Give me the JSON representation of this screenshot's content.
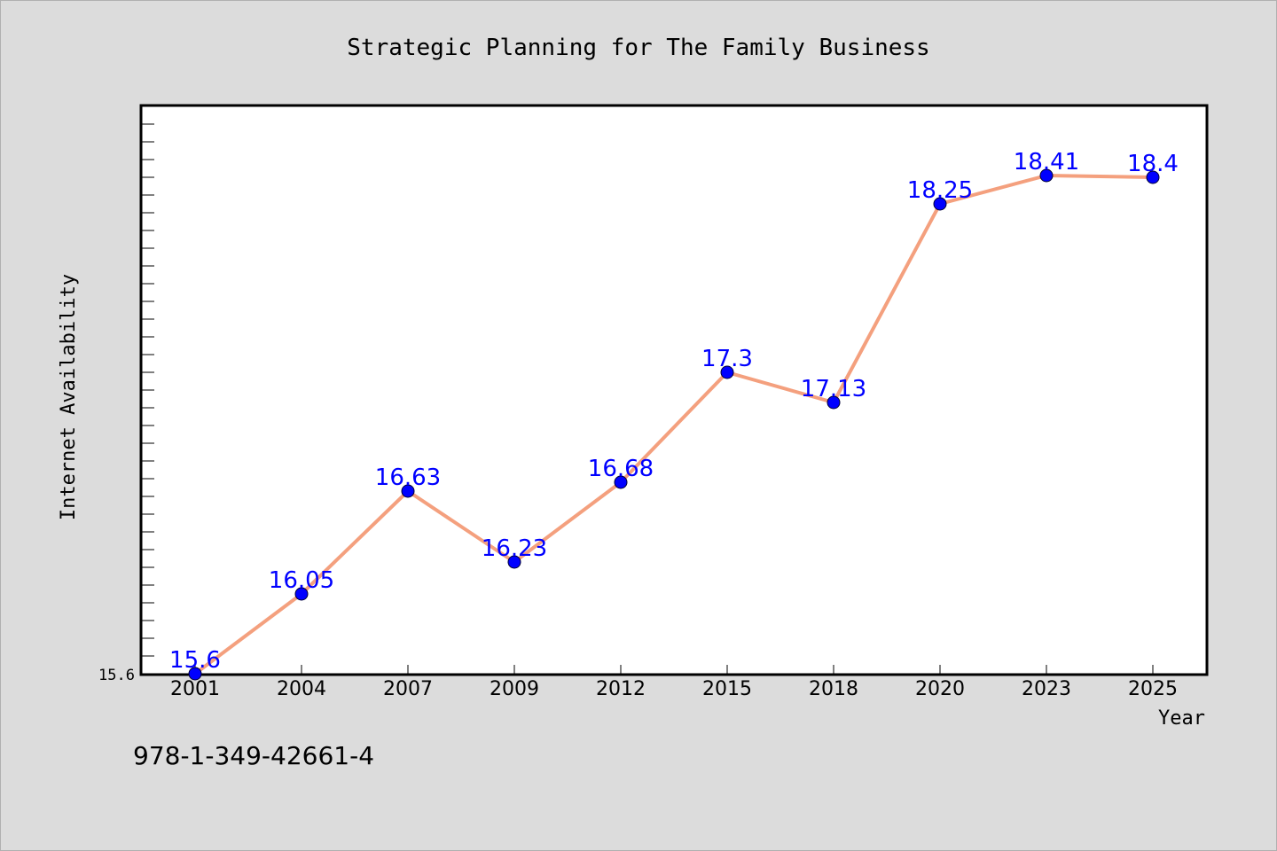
{
  "chart_data": {
    "type": "line",
    "title": "Strategic Planning for The Family Business",
    "xlabel": "Year",
    "ylabel": "Internet Availability",
    "categories": [
      "2001",
      "2004",
      "2007",
      "2009",
      "2012",
      "2015",
      "2018",
      "2020",
      "2023",
      "2025"
    ],
    "series": [
      {
        "values": [
          15.6,
          16.05,
          16.63,
          16.23,
          16.68,
          17.3,
          17.13,
          18.25,
          18.41,
          18.4
        ]
      }
    ],
    "data_labels": [
      "15.6",
      "16.05",
      "16.63",
      "16.23",
      "16.68",
      "17.3",
      "17.13",
      "18.25",
      "18.41",
      "18.4"
    ],
    "y_tick_labels": [
      "15.6"
    ],
    "ylim": [
      15.6,
      18.8
    ],
    "grid": false,
    "legend": "none",
    "colors": {
      "line": "#f4a07e",
      "marker": "#0000ff",
      "data_label": "#0000ff",
      "plot_background": "#ffffff",
      "page_background": "#dcdcdc"
    }
  },
  "footer": {
    "isbn": "978-1-349-42661-4"
  }
}
